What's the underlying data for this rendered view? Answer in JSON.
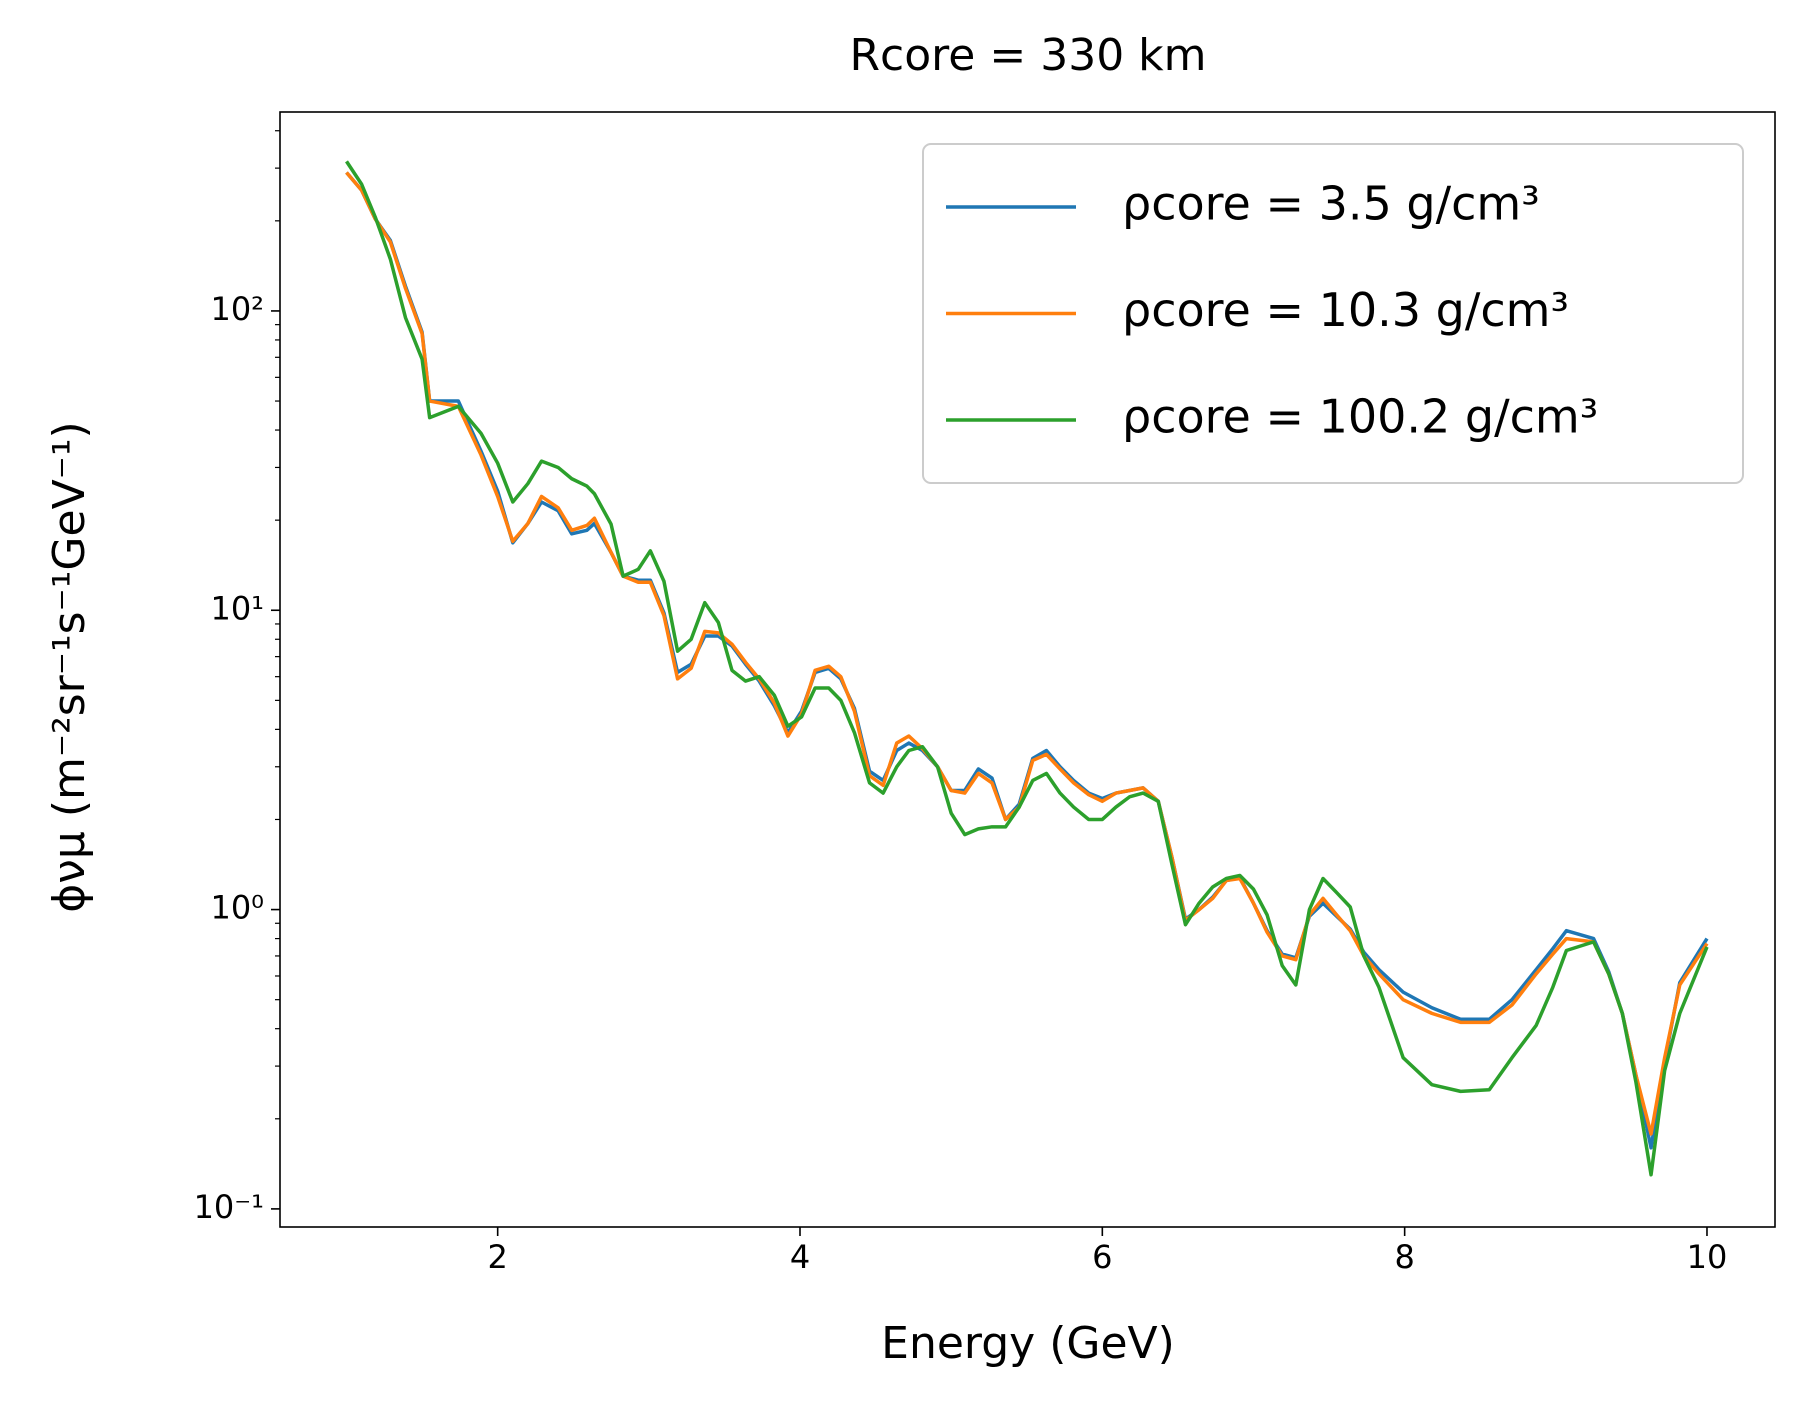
{
  "chart_data": {
    "type": "line",
    "title": "Rcore = 330 km",
    "xlabel": "Energy (GeV)",
    "ylabel": "ϕνμ (m⁻²sr⁻¹s⁻¹GeV⁻¹)",
    "x": [
      1.0,
      1.1,
      1.19,
      1.29,
      1.39,
      1.5,
      1.55,
      1.74,
      1.89,
      2.0,
      2.1,
      2.2,
      2.29,
      2.4,
      2.49,
      2.59,
      2.64,
      2.75,
      2.83,
      2.93,
      3.01,
      3.1,
      3.19,
      3.28,
      3.37,
      3.46,
      3.55,
      3.64,
      3.73,
      3.83,
      3.92,
      4.01,
      4.1,
      4.19,
      4.27,
      4.36,
      4.46,
      4.55,
      4.64,
      4.72,
      4.81,
      4.91,
      5.0,
      5.09,
      5.18,
      5.27,
      5.36,
      5.45,
      5.54,
      5.63,
      5.72,
      5.81,
      5.91,
      6.0,
      6.09,
      6.18,
      6.27,
      6.37,
      6.46,
      6.55,
      6.64,
      6.73,
      6.82,
      6.91,
      7.0,
      7.09,
      7.19,
      7.28,
      7.37,
      7.46,
      7.55,
      7.64,
      7.73,
      7.83,
      7.99,
      8.18,
      8.37,
      8.56,
      8.71,
      8.87,
      8.98,
      9.07,
      9.25,
      9.35,
      9.44,
      9.53,
      9.63,
      9.72,
      9.82,
      10.0
    ],
    "series": [
      {
        "name": "ρcore = 3.5 g/cm³",
        "color": "#1f77b4",
        "values": [
          290,
          253,
          203,
          172,
          121,
          85,
          50,
          50,
          34,
          25,
          16.8,
          19.5,
          23,
          21.5,
          18,
          18.5,
          19.5,
          15.6,
          13,
          12.6,
          12.6,
          9.8,
          6.2,
          6.6,
          8.2,
          8.2,
          7.6,
          6.6,
          5.8,
          4.8,
          3.9,
          4.6,
          6.2,
          6.4,
          5.9,
          4.7,
          2.9,
          2.7,
          3.4,
          3.6,
          3.4,
          3.0,
          2.5,
          2.5,
          2.95,
          2.75,
          2.0,
          2.25,
          3.2,
          3.4,
          3.0,
          2.7,
          2.45,
          2.35,
          2.45,
          2.5,
          2.55,
          2.3,
          1.5,
          0.93,
          1.0,
          1.1,
          1.25,
          1.28,
          1.05,
          0.85,
          0.71,
          0.69,
          0.95,
          1.05,
          0.95,
          0.86,
          0.72,
          0.63,
          0.53,
          0.47,
          0.43,
          0.43,
          0.5,
          0.63,
          0.74,
          0.85,
          0.8,
          0.62,
          0.45,
          0.28,
          0.16,
          0.31,
          0.57,
          0.8
        ]
      },
      {
        "name": "ρcore = 10.3 g/cm³",
        "color": "#ff7f0e",
        "values": [
          290,
          253,
          203,
          170,
          119,
          84,
          50,
          48,
          33,
          24,
          17,
          19.5,
          24,
          22,
          18.5,
          19.2,
          20.3,
          15.6,
          13,
          12.4,
          12.4,
          9.6,
          5.9,
          6.4,
          8.5,
          8.4,
          7.7,
          6.7,
          5.9,
          4.9,
          3.8,
          4.5,
          6.3,
          6.5,
          6,
          4.6,
          2.8,
          2.6,
          3.6,
          3.8,
          3.45,
          3.0,
          2.5,
          2.45,
          2.85,
          2.65,
          2.0,
          2.2,
          3.15,
          3.3,
          2.95,
          2.65,
          2.42,
          2.3,
          2.45,
          2.5,
          2.55,
          2.3,
          1.5,
          0.92,
          1.0,
          1.09,
          1.25,
          1.27,
          1.05,
          0.84,
          0.7,
          0.68,
          0.96,
          1.09,
          0.96,
          0.85,
          0.7,
          0.61,
          0.5,
          0.45,
          0.42,
          0.42,
          0.48,
          0.61,
          0.71,
          0.8,
          0.78,
          0.61,
          0.45,
          0.28,
          0.178,
          0.32,
          0.56,
          0.77
        ]
      },
      {
        "name": "ρcore = 100.2 g/cm³",
        "color": "#2ca02c",
        "values": [
          316,
          265,
          206,
          149,
          95,
          69,
          44,
          48,
          39,
          31,
          23,
          26.5,
          31.5,
          30,
          27.5,
          26,
          24.5,
          19.4,
          13,
          13.7,
          15.8,
          12.5,
          7.3,
          8,
          10.6,
          9.1,
          6.3,
          5.8,
          6,
          5.2,
          4.1,
          4.4,
          5.5,
          5.5,
          5,
          3.9,
          2.65,
          2.45,
          3.0,
          3.4,
          3.5,
          3.0,
          2.1,
          1.78,
          1.86,
          1.89,
          1.89,
          2.2,
          2.7,
          2.85,
          2.45,
          2.2,
          2.0,
          2.0,
          2.2,
          2.38,
          2.45,
          2.3,
          1.42,
          0.89,
          1.05,
          1.19,
          1.27,
          1.3,
          1.17,
          0.96,
          0.65,
          0.56,
          1.0,
          1.27,
          1.14,
          1.02,
          0.7,
          0.55,
          0.32,
          0.26,
          0.247,
          0.25,
          0.32,
          0.41,
          0.55,
          0.73,
          0.78,
          0.61,
          0.45,
          0.265,
          0.13,
          0.29,
          0.45,
          0.75
        ]
      }
    ],
    "xlim": [
      0.56,
      10.45
    ],
    "xticks": [
      2,
      4,
      6,
      8,
      10
    ],
    "ylim": [
      0.087,
      462
    ],
    "yscale": "log",
    "yticks": [
      {
        "value": 0.1,
        "label": "10⁻¹"
      },
      {
        "value": 1,
        "label": "10⁰"
      },
      {
        "value": 10,
        "label": "10¹"
      },
      {
        "value": 100,
        "label": "10²"
      }
    ],
    "yminorticks": [
      0.2,
      0.3,
      0.4,
      0.5,
      0.6,
      0.7,
      0.8,
      0.9,
      2,
      3,
      4,
      5,
      6,
      7,
      8,
      9,
      20,
      30,
      40,
      50,
      60,
      70,
      80,
      90,
      200,
      300,
      400
    ],
    "grid": false,
    "legend": "upper right"
  }
}
